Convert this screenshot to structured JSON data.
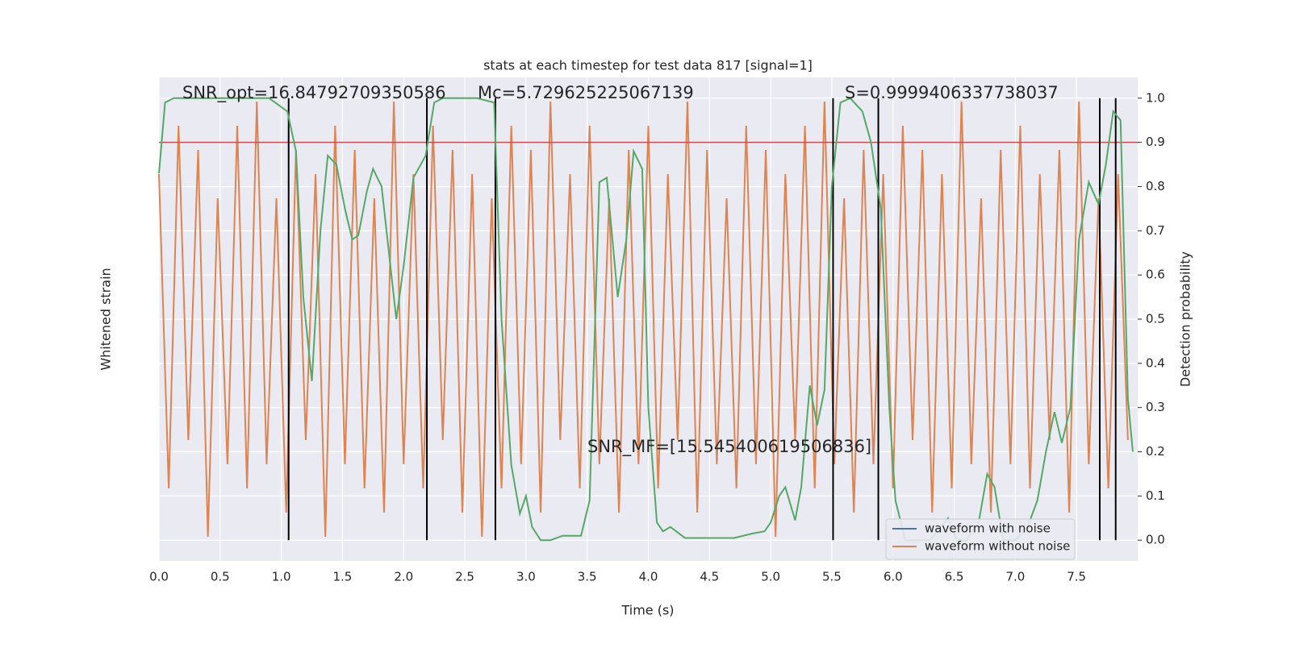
{
  "chart_data": {
    "type": "line",
    "title": "stats at each timestep for test data 817 [signal=1]",
    "xlabel": "Time (s)",
    "ylabel": "Whitened strain",
    "y2label": "Detection probability",
    "annotations": [
      "SNR_opt=16.84792709350586",
      "Mc=5.729625225067139",
      "S=0.9999406337738037",
      "SNR_MF=[15.545400619506836]"
    ],
    "xlim": [
      0,
      8
    ],
    "xticks": [
      0.0,
      0.5,
      1.0,
      1.5,
      2.0,
      2.5,
      3.0,
      3.5,
      4.0,
      4.5,
      5.0,
      5.5,
      6.0,
      6.5,
      7.0,
      7.5
    ],
    "ylim": [
      -1,
      1
    ],
    "y2lim": [
      -0.047,
      1.047
    ],
    "y2ticks": [
      0.0,
      0.1,
      0.2,
      0.3,
      0.4,
      0.5,
      0.6,
      0.7,
      0.8,
      0.9,
      1.0
    ],
    "grid": true,
    "threshold": 0.9,
    "threshold_color": "#c44e52",
    "vlines": [
      1.06,
      2.19,
      2.75,
      5.51,
      5.88,
      7.69,
      7.82
    ],
    "legend_position": "lower right",
    "legend": [
      {
        "name": "waveform with noise",
        "color": "#4c72b0"
      },
      {
        "name": "waveform without noise",
        "color": "#dd8452"
      }
    ],
    "series": [
      {
        "color": "#dd8452",
        "x": [
          0,
          0.08,
          0.16,
          0.24,
          0.32,
          0.4,
          0.48,
          0.56,
          0.64,
          0.72,
          0.8,
          0.88,
          0.96,
          1.04,
          1.12,
          1.2,
          1.28,
          1.36,
          1.44,
          1.52,
          1.6,
          1.68,
          1.76,
          1.84,
          1.92,
          2,
          2.08,
          2.16,
          2.24,
          2.32,
          2.4,
          2.48,
          2.56,
          2.64,
          2.72,
          2.8,
          2.88,
          2.96,
          3.04,
          3.12,
          3.2,
          3.28,
          3.36,
          3.44,
          3.52,
          3.6,
          3.68,
          3.76,
          3.84,
          3.92,
          4,
          4.08,
          4.16,
          4.24,
          4.32,
          4.4,
          4.48,
          4.56,
          4.64,
          4.72,
          4.8,
          4.88,
          4.96,
          5.04,
          5.12,
          5.2,
          5.28,
          5.36,
          5.44,
          5.52,
          5.6,
          5.68,
          5.76,
          5.84,
          5.92,
          6,
          6.08,
          6.16,
          6.24,
          6.32,
          6.4,
          6.48,
          6.56,
          6.64,
          6.72,
          6.8,
          6.88,
          6.96,
          7.04,
          7.12,
          7.2,
          7.28,
          7.36,
          7.44,
          7.52,
          7.6,
          7.68,
          7.76,
          7.84,
          7.92
        ],
        "values": [
          0.6,
          -0.7,
          0.8,
          -0.5,
          0.7,
          -0.9,
          0.5,
          -0.6,
          0.8,
          -0.7,
          0.9,
          -0.6,
          0.5,
          -0.8,
          0.7,
          -0.5,
          0.6,
          -0.9,
          0.8,
          -0.6,
          0.7,
          -0.7,
          0.5,
          -0.8,
          0.9,
          -0.6,
          0.6,
          -0.7,
          0.8,
          -0.5,
          0.7,
          -0.8,
          0.6,
          -0.9,
          0.5,
          -0.7,
          0.8,
          -0.6,
          0.7,
          -0.8,
          0.9,
          -0.5,
          0.6,
          -0.7,
          0.8,
          -0.6,
          0.5,
          -0.8,
          0.7,
          -0.6,
          0.8,
          -0.7,
          0.6,
          -0.5,
          0.9,
          -0.8,
          0.7,
          -0.6,
          0.5,
          -0.7,
          0.8,
          -0.6,
          0.7,
          -0.9,
          0.6,
          -0.5,
          0.8,
          -0.7,
          0.9,
          -0.6,
          0.5,
          -0.8,
          0.7,
          -0.6,
          0.6,
          -0.7,
          0.8,
          -0.5,
          0.7,
          -0.8,
          0.6,
          -0.7,
          0.9,
          -0.6,
          0.5,
          -0.8,
          0.7,
          -0.6,
          0.8,
          -0.7,
          0.6,
          -0.5,
          0.7,
          -0.8,
          0.9,
          -0.6,
          0.5,
          -0.7,
          0.6,
          -0.5
        ]
      },
      {
        "color": "#55a868",
        "axis": "y2",
        "x": [
          0,
          0.05,
          0.12,
          0.5,
          0.9,
          1.05,
          1.12,
          1.18,
          1.25,
          1.32,
          1.38,
          1.45,
          1.52,
          1.58,
          1.63,
          1.7,
          1.75,
          1.82,
          1.88,
          1.94,
          2,
          2.08,
          2.18,
          2.25,
          2.32,
          2.6,
          2.74,
          2.8,
          2.88,
          2.95,
          3,
          3.05,
          3.12,
          3.2,
          3.3,
          3.38,
          3.45,
          3.52,
          3.6,
          3.66,
          3.75,
          3.82,
          3.88,
          3.95,
          4,
          4.07,
          4.12,
          4.18,
          4.3,
          4.5,
          4.7,
          4.85,
          4.95,
          5,
          5.07,
          5.12,
          5.2,
          5.25,
          5.32,
          5.38,
          5.44,
          5.5,
          5.57,
          5.65,
          5.75,
          5.82,
          5.9,
          5.97,
          6.02,
          6.1,
          6.3,
          6.45,
          6.52,
          6.6,
          6.7,
          6.77,
          6.83,
          6.9,
          7,
          7.1,
          7.18,
          7.25,
          7.32,
          7.38,
          7.45,
          7.52,
          7.6,
          7.68,
          7.74,
          7.8,
          7.86,
          7.92,
          7.96
        ],
        "values": [
          0.83,
          0.99,
          1.0,
          1.0,
          1.0,
          0.97,
          0.88,
          0.55,
          0.36,
          0.7,
          0.87,
          0.85,
          0.75,
          0.68,
          0.69,
          0.79,
          0.84,
          0.8,
          0.65,
          0.5,
          0.62,
          0.82,
          0.87,
          0.99,
          1.0,
          1.0,
          0.99,
          0.5,
          0.17,
          0.06,
          0.1,
          0.03,
          0.0,
          0.0,
          0.01,
          0.01,
          0.01,
          0.09,
          0.81,
          0.82,
          0.55,
          0.68,
          0.88,
          0.84,
          0.3,
          0.04,
          0.02,
          0.03,
          0.005,
          0.005,
          0.005,
          0.015,
          0.02,
          0.04,
          0.1,
          0.12,
          0.045,
          0.12,
          0.35,
          0.26,
          0.34,
          0.8,
          0.99,
          1.0,
          0.97,
          0.9,
          0.75,
          0.3,
          0.09,
          0.0,
          0.0,
          0.05,
          0.0,
          0.0,
          0.04,
          0.15,
          0.12,
          0.0,
          0.0,
          0.03,
          0.09,
          0.2,
          0.29,
          0.22,
          0.3,
          0.68,
          0.81,
          0.76,
          0.85,
          0.97,
          0.95,
          0.32,
          0.2
        ]
      }
    ]
  }
}
